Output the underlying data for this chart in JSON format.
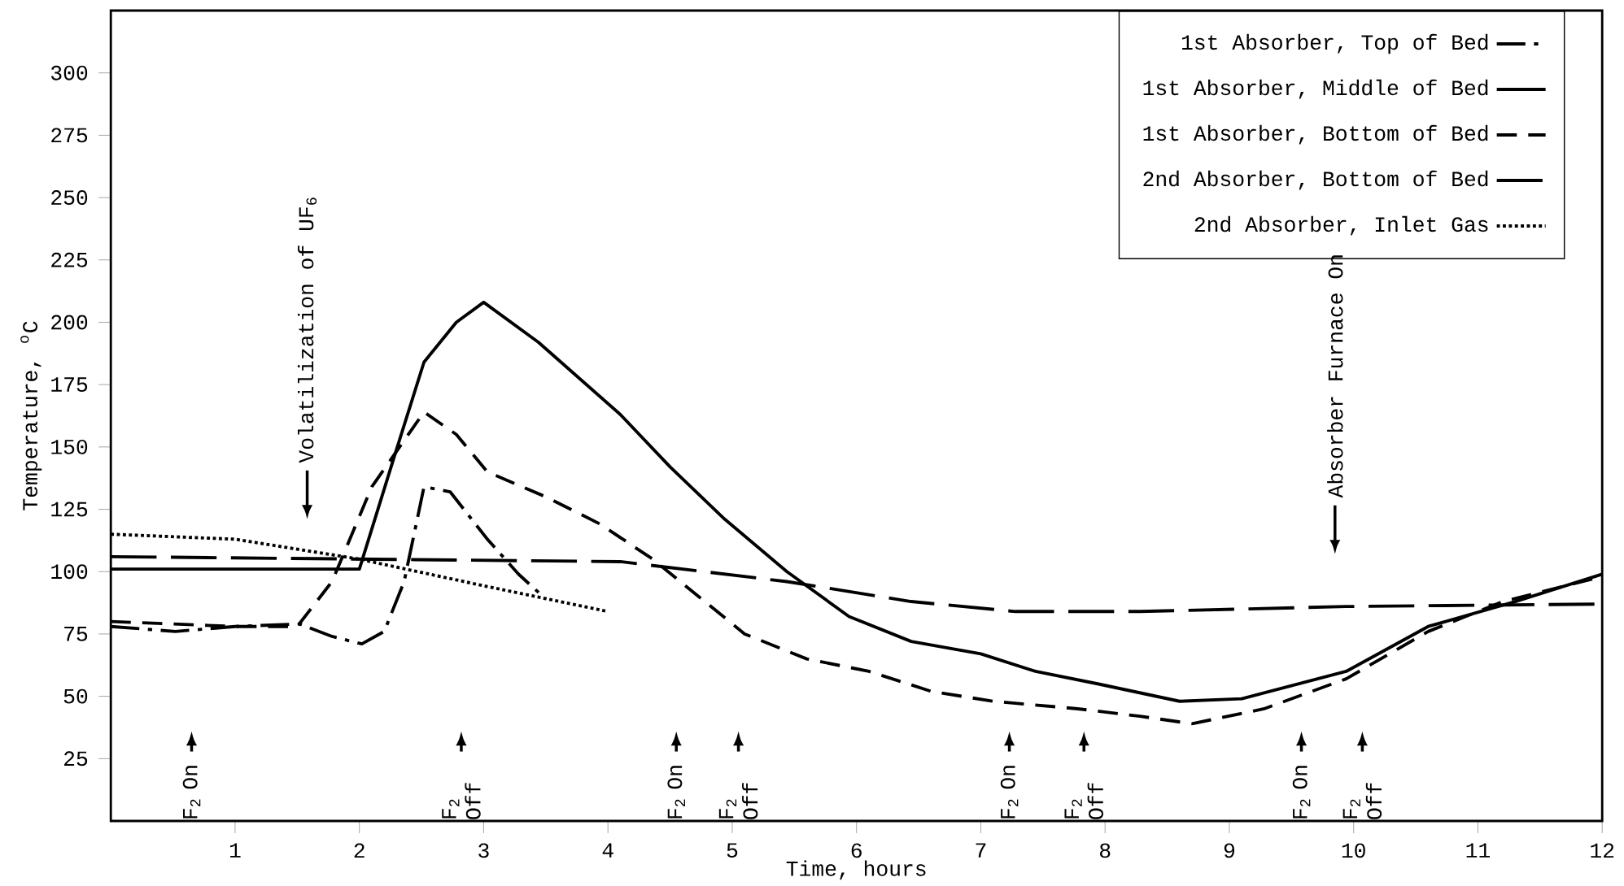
{
  "chart_data": {
    "type": "line",
    "xlabel": "Time, hours",
    "ylabel": "Temperature, $^{o}$C",
    "xlim": [
      0,
      12
    ],
    "ylim": [
      0,
      325
    ],
    "xticks": [
      1,
      2,
      3,
      4,
      5,
      6,
      7,
      8,
      9,
      10,
      11,
      12
    ],
    "yticks": [
      25,
      50,
      75,
      100,
      125,
      150,
      175,
      200,
      225,
      250,
      275,
      300
    ],
    "grid": false,
    "legend": "top right",
    "series": [
      {
        "name": "1st Absorber, Top of Bed",
        "color": "#000000",
        "line_style": "dashdot",
        "x": [
          0,
          0.52,
          1.0,
          1.52,
          1.78,
          2.02,
          2.2,
          2.36,
          2.52,
          2.73,
          3.03,
          3.28,
          3.5
        ],
        "values": [
          78,
          76,
          78,
          79,
          74,
          71,
          76,
          96,
          134,
          132,
          113,
          99,
          89
        ]
      },
      {
        "name": "1st Absorber, Middle of Bed",
        "color": "#000000",
        "line_style": "solid",
        "x": [
          0,
          1.0,
          2.0,
          2.28,
          2.52,
          2.78,
          3.0,
          3.44,
          4.1,
          4.5,
          4.94,
          5.44,
          5.94,
          6.44,
          7.0,
          7.44,
          7.94,
          8.6,
          9.1,
          9.94,
          10.6,
          11.3,
          12
        ],
        "values": [
          101,
          101,
          101,
          146,
          184,
          200,
          208,
          192,
          163,
          142,
          121,
          100,
          82,
          72,
          67,
          60,
          55,
          48,
          49,
          60,
          78,
          88,
          99
        ]
      },
      {
        "name": "1st Absorber, Bottom of Bed",
        "color": "#000000",
        "line_style": "dashed",
        "x": [
          0,
          1.0,
          1.5,
          1.78,
          2.1,
          2.52,
          2.78,
          3.03,
          3.5,
          3.94,
          4.36,
          4.78,
          5.1,
          5.6,
          6.1,
          6.6,
          7.1,
          7.78,
          8.28,
          8.7,
          9.28,
          9.94,
          10.6,
          11.2,
          12
        ],
        "values": [
          80,
          78,
          78,
          96,
          134,
          164,
          155,
          140,
          130,
          119,
          105,
          88,
          75,
          65,
          60,
          52,
          48,
          45,
          42,
          39,
          45,
          57,
          76,
          88,
          98
        ]
      },
      {
        "name": "2nd Absorber, Bottom of Bed",
        "color": "#000000",
        "line_style": "longdashed",
        "x": [
          0,
          4.1,
          5.44,
          6.44,
          7.28,
          8.28,
          9.94,
          12
        ],
        "values": [
          106,
          104,
          96,
          88,
          84,
          84,
          86,
          87
        ]
      },
      {
        "name": "2nd Absorber, Inlet Gas",
        "color": "#000000",
        "line_style": "dotted",
        "x": [
          0,
          1.0,
          2.0,
          3.03,
          4.0
        ],
        "values": [
          115,
          113,
          105,
          94,
          84
        ]
      }
    ],
    "annotations": [
      "Volatilization of UF$_{6}$",
      "Absorber Furnace On",
      "F$_{2}$ On",
      "F$_{2}$ Off",
      "F$_{2}$ On",
      "F$_{2}$ Off",
      "F$_{2}$ On",
      "F$_{2}$ Off",
      "F$_{2}$ On",
      "F$_{2}$ Off"
    ]
  }
}
